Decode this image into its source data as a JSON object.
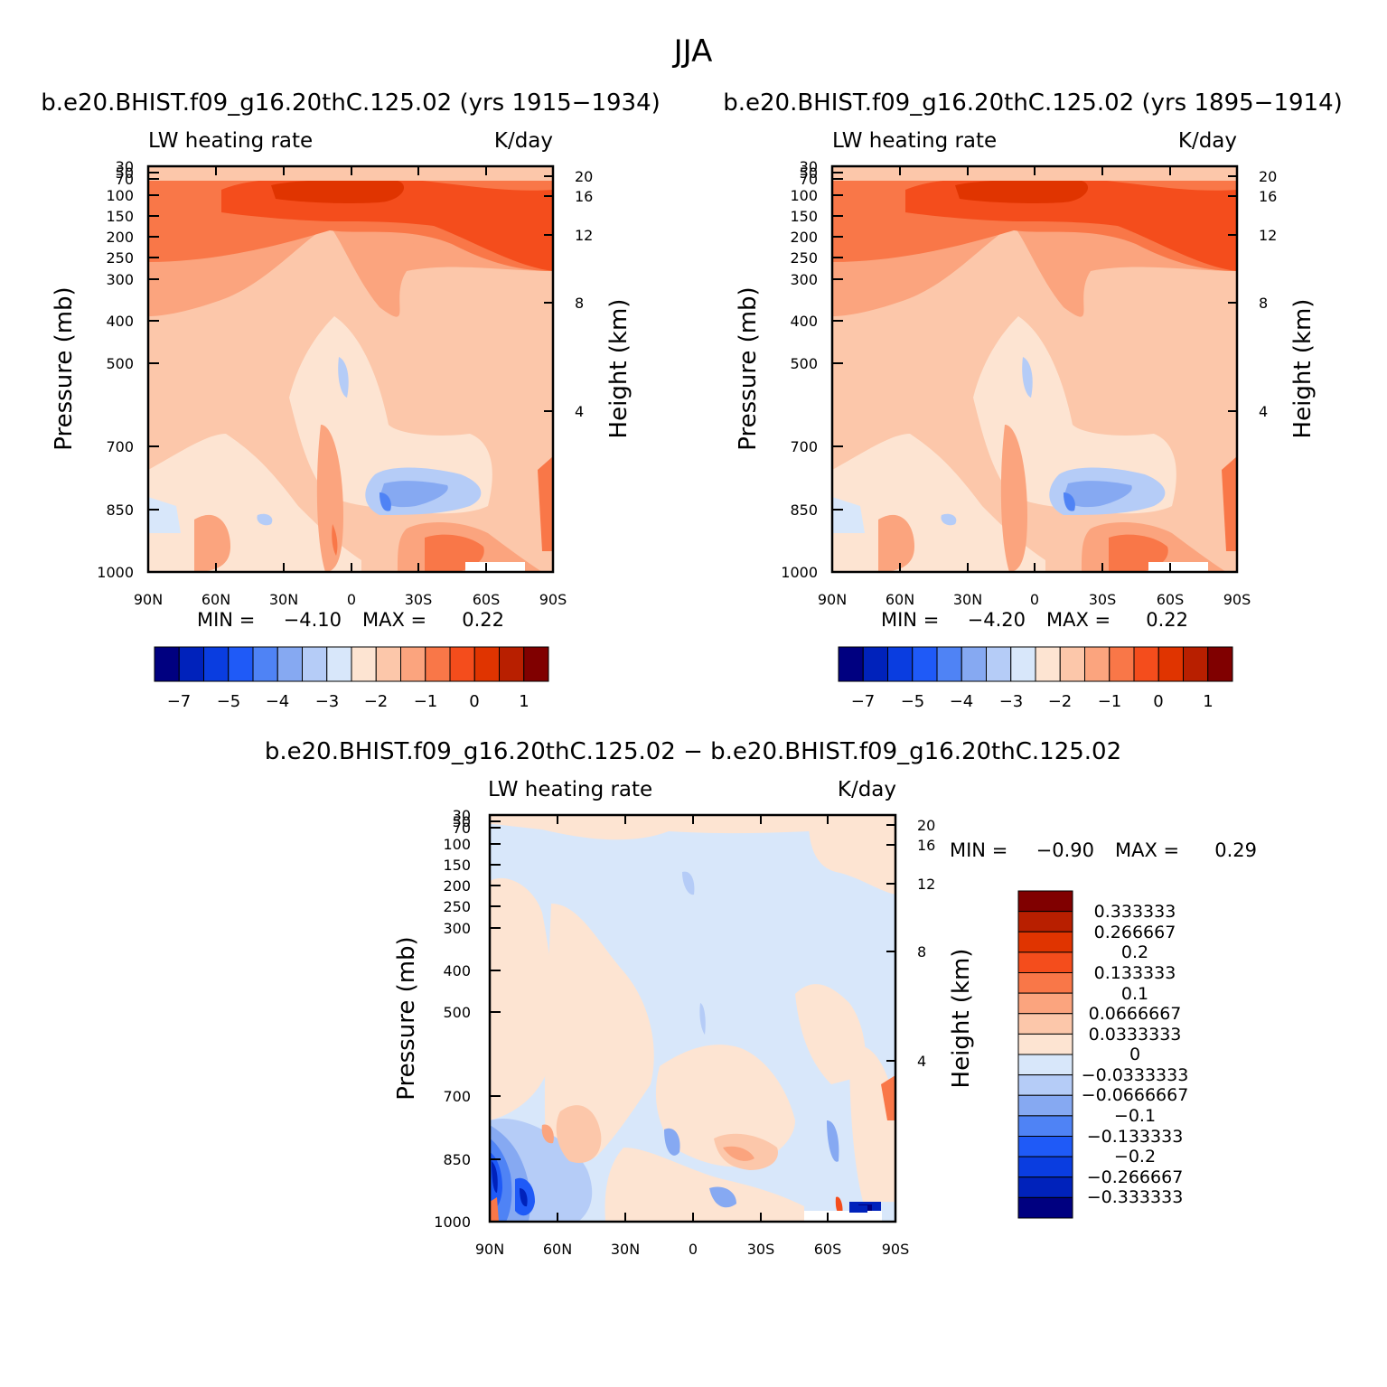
{
  "figure": {
    "title": "JJA"
  },
  "chart_data": [
    {
      "type": "heatmap",
      "title": "b.e20.BHIST.f09_g16.20thC.125.02 (yrs 1915−1934)",
      "left_label": "LW heating rate",
      "right_label": "K/day",
      "xlabel": "",
      "ylabel": "Pressure (mb)",
      "ylabel_right": "Height (km)",
      "x_ticks": [
        "90N",
        "60N",
        "30N",
        "0",
        "30S",
        "60S",
        "90S"
      ],
      "y_ticks": [
        "30",
        "50",
        "70",
        "100",
        "150",
        "200",
        "250",
        "300",
        "400",
        "500",
        "700",
        "850",
        "1000"
      ],
      "height_ticks": [
        "20",
        "16",
        "12",
        "8",
        "4"
      ],
      "min_label": "MIN =",
      "min_value": "−4.10",
      "max_label": "MAX =",
      "max_value": "0.22",
      "colorbar_labels": [
        "−7",
        "−5",
        "−4",
        "−3",
        "−2",
        "−1",
        "0",
        "1"
      ],
      "ylim": [
        1000,
        30
      ]
    },
    {
      "type": "heatmap",
      "title": "b.e20.BHIST.f09_g16.20thC.125.02 (yrs 1895−1914)",
      "left_label": "LW heating rate",
      "right_label": "K/day",
      "xlabel": "",
      "ylabel": "Pressure (mb)",
      "ylabel_right": "Height (km)",
      "x_ticks": [
        "90N",
        "60N",
        "30N",
        "0",
        "30S",
        "60S",
        "90S"
      ],
      "y_ticks": [
        "30",
        "50",
        "70",
        "100",
        "150",
        "200",
        "250",
        "300",
        "400",
        "500",
        "700",
        "850",
        "1000"
      ],
      "height_ticks": [
        "20",
        "16",
        "12",
        "8",
        "4"
      ],
      "min_label": "MIN =",
      "min_value": "−4.20",
      "max_label": "MAX =",
      "max_value": "0.22",
      "colorbar_labels": [
        "−7",
        "−5",
        "−4",
        "−3",
        "−2",
        "−1",
        "0",
        "1"
      ],
      "ylim": [
        1000,
        30
      ]
    },
    {
      "type": "heatmap",
      "title": "b.e20.BHIST.f09_g16.20thC.125.02 − b.e20.BHIST.f09_g16.20thC.125.02",
      "left_label": "LW heating rate",
      "right_label": "K/day",
      "xlabel": "",
      "ylabel": "Pressure (mb)",
      "ylabel_right": "Height (km)",
      "x_ticks": [
        "90N",
        "60N",
        "30N",
        "0",
        "30S",
        "60S",
        "90S"
      ],
      "y_ticks": [
        "30",
        "50",
        "70",
        "100",
        "150",
        "200",
        "250",
        "300",
        "400",
        "500",
        "700",
        "850",
        "1000"
      ],
      "height_ticks": [
        "20",
        "16",
        "12",
        "8",
        "4"
      ],
      "min_label": "MIN =",
      "min_value": "−0.90",
      "max_label": "MAX =",
      "max_value": "0.29",
      "colorbar_labels": [
        "0.333333",
        "0.266667",
        "0.2",
        "0.133333",
        "0.1",
        "0.0666667",
        "0.0333333",
        "0",
        "−0.0333333",
        "−0.0666667",
        "−0.1",
        "−0.133333",
        "−0.2",
        "−0.266667",
        "−0.333333"
      ],
      "ylim": [
        1000,
        30
      ]
    }
  ],
  "colors": {
    "palette": [
      "#000080",
      "#0022bb",
      "#0a3de0",
      "#1f5af7",
      "#4f83f5",
      "#86a9f2",
      "#b5ccf7",
      "#d8e7fa",
      "#fde4d2",
      "#fcc7aa",
      "#fba47e",
      "#f97748",
      "#f44d1c",
      "#e03400",
      "#b81f00",
      "#800000"
    ]
  }
}
